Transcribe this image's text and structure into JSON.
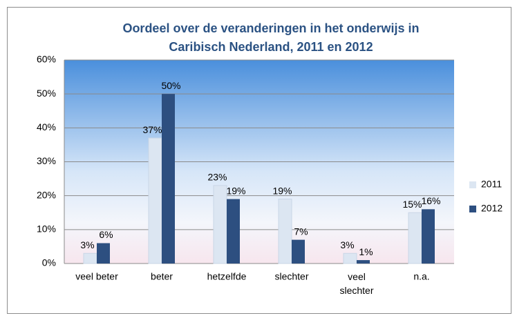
{
  "chart_data": {
    "type": "bar",
    "title": [
      "Oordeel over de veranderingen in het onderwijs in",
      "Caribisch Nederland, 2011 en 2012"
    ],
    "categories": [
      "veel beter",
      "beter",
      "hetzelfde",
      "slechter",
      "veel slechter",
      "n.a."
    ],
    "series": [
      {
        "name": "2011",
        "color": "#dce6f2",
        "values": [
          3,
          37,
          23,
          19,
          3,
          15
        ],
        "value_labels": [
          "3%",
          "37%",
          "23%",
          "19%",
          "3%",
          "15%"
        ]
      },
      {
        "name": "2012",
        "color": "#2d4f80",
        "values": [
          6,
          50,
          19,
          7,
          1,
          16
        ],
        "value_labels": [
          "6%",
          "50%",
          "19%",
          "7%",
          "1%",
          "16%"
        ]
      }
    ],
    "ylim": [
      0,
      60
    ],
    "yticks": [
      {
        "value": 0,
        "label": "0%"
      },
      {
        "value": 10,
        "label": "10%"
      },
      {
        "value": 20,
        "label": "20%"
      },
      {
        "value": 30,
        "label": "30%"
      },
      {
        "value": 40,
        "label": "40%"
      },
      {
        "value": 50,
        "label": "50%"
      },
      {
        "value": 60,
        "label": "60%"
      }
    ],
    "grid": true,
    "legend": "right"
  }
}
